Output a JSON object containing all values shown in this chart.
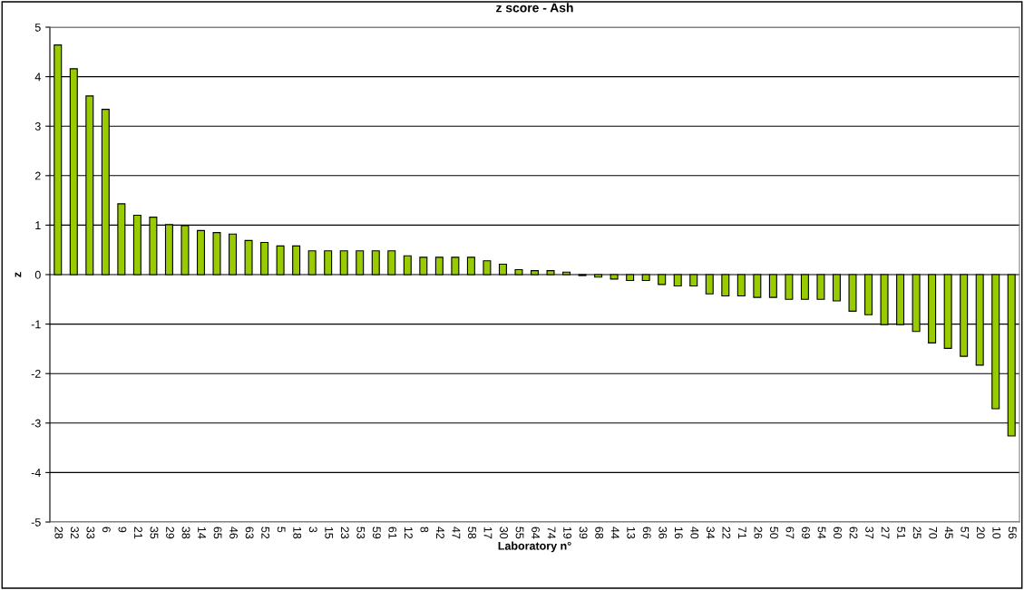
{
  "chart_data": {
    "type": "bar",
    "title": "z score - Ash",
    "xlabel": "Laboratory n°",
    "ylabel": "z",
    "categories": [
      "28",
      "32",
      "33",
      "6",
      "9",
      "21",
      "35",
      "29",
      "38",
      "14",
      "65",
      "46",
      "63",
      "52",
      "5",
      "18",
      "3",
      "15",
      "23",
      "53",
      "59",
      "61",
      "12",
      "8",
      "42",
      "47",
      "58",
      "17",
      "30",
      "55",
      "64",
      "74",
      "19",
      "39",
      "68",
      "44",
      "13",
      "66",
      "36",
      "16",
      "40",
      "34",
      "22",
      "71",
      "26",
      "50",
      "67",
      "69",
      "54",
      "60",
      "62",
      "37",
      "27",
      "51",
      "25",
      "70",
      "45",
      "57",
      "20",
      "10",
      "56"
    ],
    "values": [
      4.64,
      4.16,
      3.61,
      3.34,
      1.43,
      1.2,
      1.16,
      1.01,
      0.99,
      0.89,
      0.85,
      0.82,
      0.69,
      0.65,
      0.58,
      0.58,
      0.48,
      0.48,
      0.48,
      0.48,
      0.48,
      0.48,
      0.38,
      0.35,
      0.35,
      0.35,
      0.35,
      0.28,
      0.21,
      0.1,
      0.08,
      0.08,
      0.05,
      -0.02,
      -0.05,
      -0.09,
      -0.12,
      -0.12,
      -0.2,
      -0.23,
      -0.23,
      -0.39,
      -0.43,
      -0.43,
      -0.46,
      -0.46,
      -0.5,
      -0.5,
      -0.5,
      -0.53,
      -0.74,
      -0.81,
      -1.01,
      -1.01,
      -1.15,
      -1.38,
      -1.49,
      -1.65,
      -1.83,
      -2.71,
      -3.26
    ],
    "color": "#99cc00",
    "ylim": [
      -5,
      5
    ],
    "yticks": [
      -5,
      -4,
      -3,
      -2,
      -1,
      0,
      1,
      2,
      3,
      4,
      5
    ],
    "grid": "y"
  }
}
